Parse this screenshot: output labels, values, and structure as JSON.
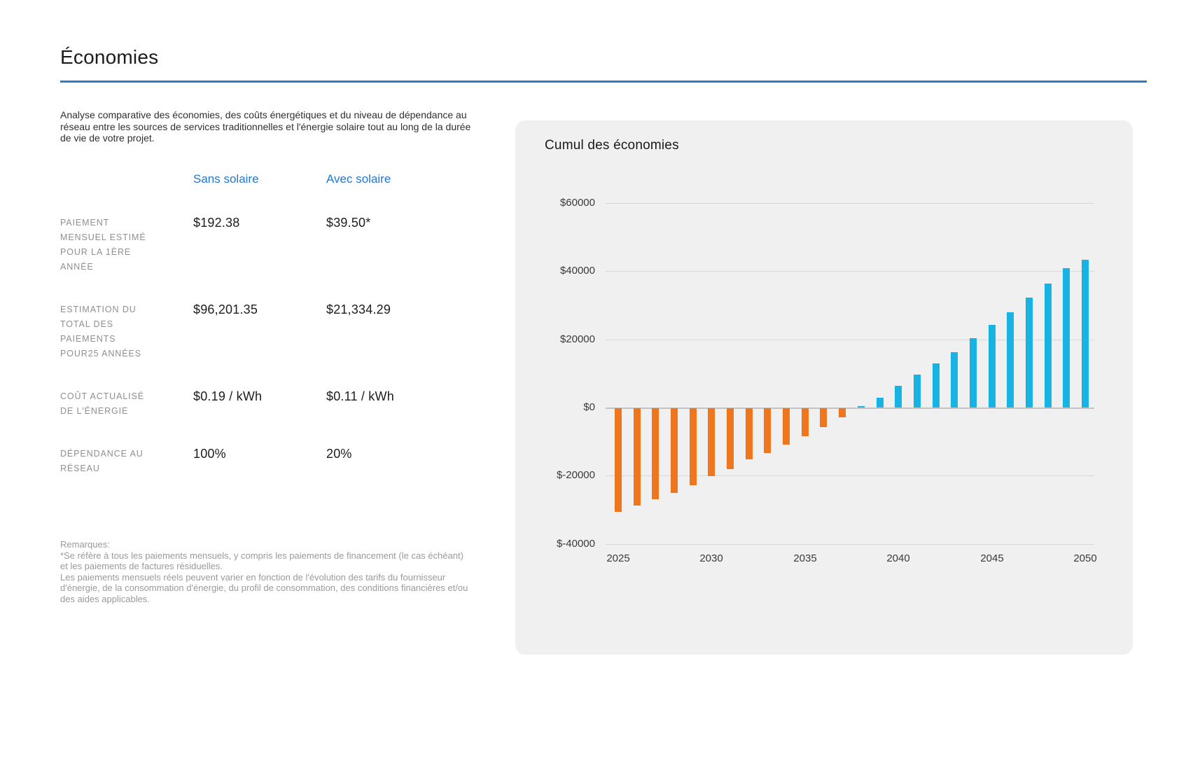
{
  "page": {
    "title": "Économies",
    "description": "Analyse comparative des économies, des coûts énergétiques et du niveau de dépendance au réseau entre les sources de services traditionnelles et l'énergie solaire tout au long de la durée de vie de votre projet."
  },
  "comparison": {
    "columns": [
      "Sans solaire",
      "Avec solaire"
    ],
    "rows": [
      {
        "label": "PAIEMENT MENSUEL ESTIMÉ POUR LA 1ÈRE ANNÉE",
        "sans": "$192.38",
        "avec": "$39.50*"
      },
      {
        "label": "ESTIMATION DU TOTAL DES PAIEMENTS POUR25 ANNÉES",
        "sans": "$96,201.35",
        "avec": "$21,334.29"
      },
      {
        "label": "COÛT ACTUALISÉ DE L'ÉNERGIE",
        "sans": "$0.19 / kWh",
        "avec": "$0.11 / kWh"
      },
      {
        "label": "DÉPENDANCE AU RÉSEAU",
        "sans": "100%",
        "avec": "20%"
      }
    ]
  },
  "notes": {
    "heading": "Remarques:",
    "lines": [
      "*Se réfère à tous les paiements mensuels, y compris les paiements de financement (le cas échéant) et les paiements de factures résiduelles.",
      "Les paiements mensuels réels peuvent varier en fonction de l'évolution des tarifs du fournisseur d'énergie, de la consommation d'énergie, du profil de consommation, des conditions financières et/ou des aides applicables."
    ]
  },
  "chart_data": {
    "type": "bar",
    "title": "Cumul des économies",
    "x": [
      2025,
      2026,
      2027,
      2028,
      2029,
      2030,
      2031,
      2032,
      2033,
      2034,
      2035,
      2036,
      2037,
      2038,
      2039,
      2040,
      2041,
      2042,
      2043,
      2044,
      2045,
      2046,
      2047,
      2048,
      2049,
      2050
    ],
    "values": [
      -30500,
      -28600,
      -26700,
      -24800,
      -22600,
      -20000,
      -17900,
      -15100,
      -13100,
      -10600,
      -8200,
      -5500,
      -2600,
      400,
      2900,
      6300,
      9600,
      13000,
      16300,
      20400,
      24200,
      28000,
      32300,
      36400,
      41000,
      43400
    ],
    "ylim": [
      -40000,
      60000
    ],
    "y_ticks": [
      60000,
      40000,
      20000,
      0,
      -20000,
      -40000
    ],
    "y_tick_labels": [
      "$60000",
      "$40000",
      "$20000",
      "$0",
      "$-20000",
      "$-40000"
    ],
    "x_ticks": [
      2025,
      2030,
      2035,
      2040,
      2045,
      2050
    ],
    "grid": true,
    "legend": "none",
    "colors": {
      "positive": "#17b3e4",
      "negative": "#f0761e",
      "accent_blue": "#2277cd",
      "rule_blue": "#2a7cc7",
      "panel_bg": "#f0f0f0"
    }
  }
}
